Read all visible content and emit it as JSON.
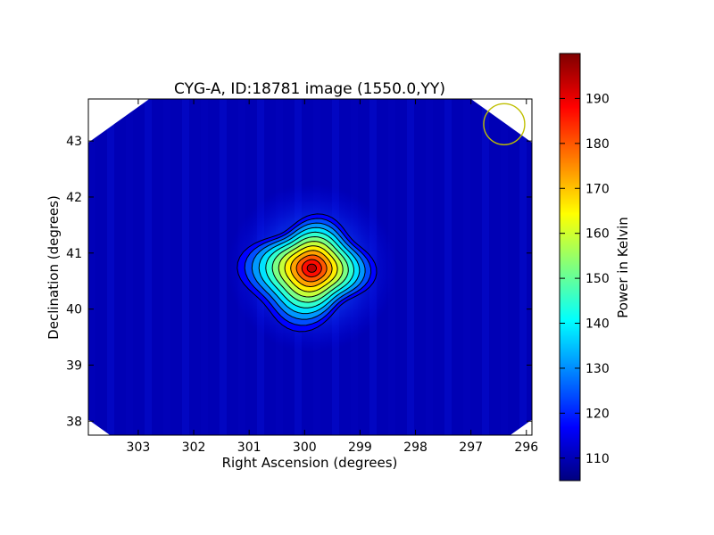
{
  "chart_data": {
    "type": "heatmap",
    "title": "CYG-A, ID:18781 image (1550.0,YY)",
    "xlabel": "Right Ascension (degrees)",
    "ylabel": "Declination (degrees)",
    "colorbar_label": "Power in Kelvin",
    "xlim": [
      303.9,
      295.9
    ],
    "ylim": [
      37.75,
      43.75
    ],
    "x_ticks": [
      "303",
      "302",
      "301",
      "300",
      "299",
      "298",
      "297",
      "296"
    ],
    "y_ticks": [
      "38",
      "39",
      "40",
      "41",
      "42",
      "43"
    ],
    "colorbar_range": [
      105,
      200
    ],
    "colorbar_ticks": [
      "110",
      "120",
      "130",
      "140",
      "150",
      "160",
      "170",
      "180",
      "190"
    ],
    "colormap": "jet",
    "background_level": 110,
    "source": {
      "ra": 299.87,
      "dec": 40.73,
      "peak": 197
    },
    "beam_marker": {
      "ra": 296.4,
      "dec": 43.3,
      "color": "#bfbf00"
    },
    "footprint_corners": [
      {
        "ra": 299.9,
        "dec": 45.8
      },
      {
        "ra": 292.4,
        "dec": 40.5
      },
      {
        "ra": 299.9,
        "dec": 35.2
      },
      {
        "ra": 307.4,
        "dec": 40.5
      }
    ],
    "grid": false
  }
}
